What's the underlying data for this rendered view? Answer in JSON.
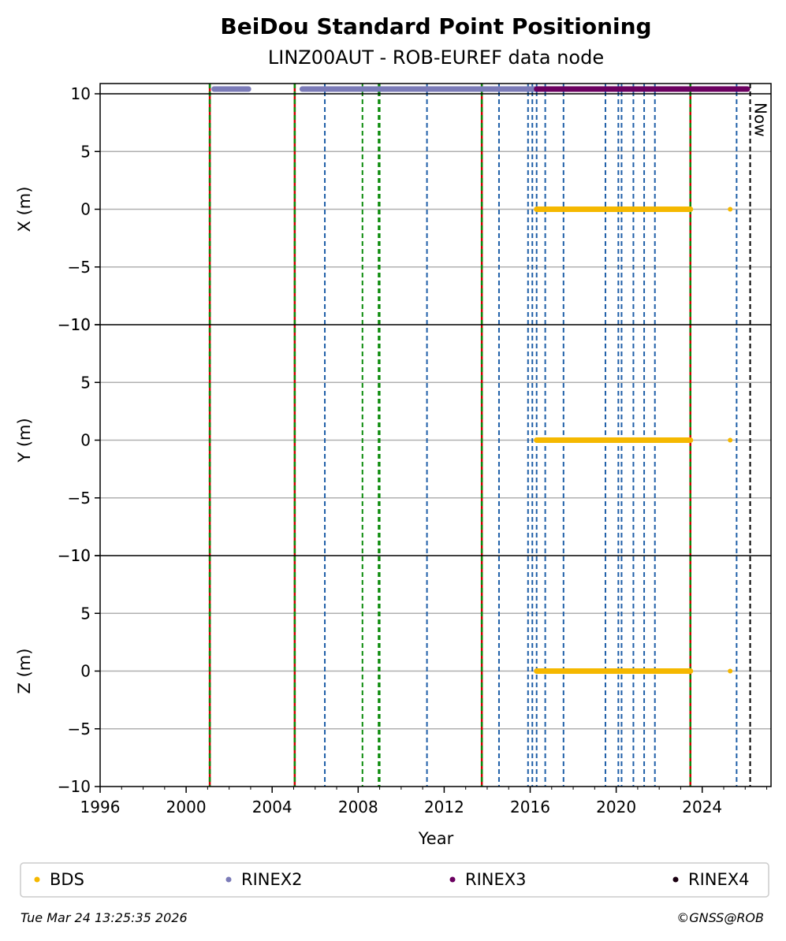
{
  "chart_data": {
    "type": "scatter",
    "title": "BeiDou Standard Point Positioning",
    "subtitle": "LINZ00AUT - ROB-EUREF data node",
    "xlabel": "Year",
    "xlim": [
      1996,
      2027.2
    ],
    "xticks": [
      1996,
      2000,
      2004,
      2008,
      2012,
      2016,
      2020,
      2024
    ],
    "panels": [
      {
        "ylabel": "X (m)",
        "ylim": [
          -10,
          10
        ],
        "yticks": [
          -10,
          -5,
          0,
          5,
          10
        ],
        "tick_labels": [
          "−10",
          "−5",
          "0",
          "5",
          "10"
        ]
      },
      {
        "ylabel": "Y (m)",
        "ylim": [
          -10,
          10
        ],
        "yticks": [
          -10,
          -5,
          0,
          5,
          10
        ],
        "tick_labels": [
          "−10",
          "−5",
          "0",
          "5",
          "10"
        ]
      },
      {
        "ylabel": "Z (m)",
        "ylim": [
          -10,
          10
        ],
        "yticks": [
          -10,
          -5,
          0,
          5,
          10
        ],
        "tick_labels": [
          "−10",
          "−5",
          "0",
          "5",
          "10"
        ]
      }
    ],
    "series": [
      {
        "name": "BDS",
        "color": "#f5b800",
        "segments": [
          [
            2016.3,
            2023.45
          ],
          [
            2025.3,
            2025.32
          ]
        ],
        "y": 0
      },
      {
        "name": "RINEX2",
        "color": "#7b7bb8",
        "segments": [
          [
            2001.3,
            2002.9
          ],
          [
            2005.4,
            2016.3
          ]
        ],
        "y": 10.4
      },
      {
        "name": "RINEX3",
        "color": "#6b0060",
        "segments": [
          [
            2016.3,
            2026.1
          ]
        ],
        "y": 10.4
      },
      {
        "name": "RINEX4",
        "color": "#1a0010",
        "segments": [],
        "y": 10.4
      }
    ],
    "event_lines": {
      "red_green": [
        2001.1,
        2005.05,
        2013.75,
        2023.45
      ],
      "green": [
        2008.2,
        2008.95,
        2009.0
      ],
      "blue": [
        2006.45,
        2011.2,
        2014.55,
        2015.9,
        2016.1,
        2016.3,
        2016.7,
        2017.55,
        2019.5,
        2020.1,
        2020.25,
        2020.8,
        2021.3,
        2021.8,
        2025.6
      ],
      "now": 2026.23
    },
    "now_label": "Now",
    "grid": true,
    "legend": "bottom"
  },
  "footer": {
    "timestamp": "Tue Mar 24 13:25:35 2026",
    "copyright": "©GNSS@ROB"
  }
}
